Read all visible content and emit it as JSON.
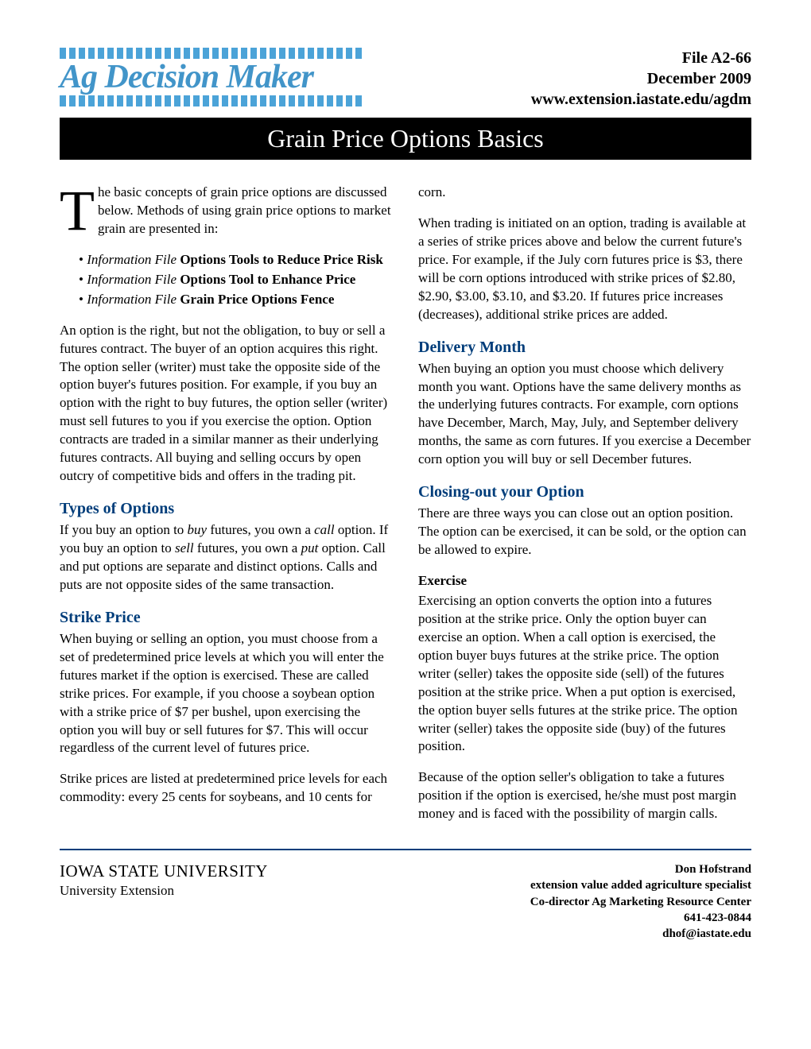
{
  "header": {
    "logo_text": "Ag Decision Maker",
    "file_id": "File  A2-66",
    "date": "December 2009",
    "url": "www.extension.iastate.edu/agdm"
  },
  "title": "Grain Price Options Basics",
  "intro": {
    "drop_cap": "T",
    "text": "he basic concepts of grain price options are discussed below. Methods of using grain price options to market grain are presented in:"
  },
  "info_files": {
    "prefix": "Information File",
    "items": [
      "Options Tools to Reduce Price Risk",
      "Options Tool to Enhance Price",
      "Grain Price Options Fence"
    ]
  },
  "para_option_def": "An option is the right, but not the obligation, to buy or sell a futures contract. The buyer of an option acquires this right. The option seller (writer) must take the opposite side of the option buyer's futures position. For example, if you buy an option with the right to buy futures, the option seller (writer) must sell futures to you if you exercise the option. Option contracts are traded in a similar manner as their underlying futures contracts. All buying and selling occurs by open outcry of competitive bids and offers in the trading pit.",
  "types_heading": "Types of Options",
  "types_para_parts": {
    "p1": "If you buy an option to ",
    "buy_i": "buy",
    "p2": " futures, you own a ",
    "call_i": "call",
    "p3": " option. If you buy an option to ",
    "sell_i": "sell",
    "p4": " futures, you own a ",
    "put_i": "put",
    "p5": " option. Call and put options are separate and distinct options. Calls and puts are not opposite sides of the same transaction."
  },
  "strike_heading": "Strike Price",
  "strike_para1": "When buying or selling an option, you must choose from a set of predetermined price levels at which you will enter the futures market if the option is exercised. These are called strike prices. For example, if you choose a soybean option with a strike price of $7 per bushel, upon exercising the option you will buy or sell futures for $7. This will occur regardless of the current level of futures price.",
  "strike_para2": "Strike prices are listed at predetermined price levels for each commodity: every 25 cents for soybeans, and 10 cents for corn.",
  "strike_para3": "When trading is initiated on an option, trading is available at a series of strike prices above and below the current future's price. For example, if the July corn futures price is $3, there will be corn options introduced with strike prices of $2.80, $2.90, $3.00, $3.10, and $3.20. If futures price increases (decreases), additional strike prices are added.",
  "delivery_heading": "Delivery Month",
  "delivery_para": "When buying an option you must choose which delivery month you want. Options have the same delivery months as the underlying futures contracts. For example, corn options have December, March, May, July, and September delivery months, the same as corn futures. If you exercise a December corn option you will buy or sell December futures.",
  "closing_heading": "Closing-out your Option",
  "closing_para": "There are three ways you can close out an option position. The option can be exercised, it can be sold, or the option can be allowed to expire.",
  "exercise_heading": "Exercise",
  "exercise_para1": "Exercising an option converts the option into a futures position at the strike price. Only the option buyer can exercise an option. When a call option is exercised, the option buyer buys futures at the strike price. The option writer (seller) takes the opposite side (sell) of the futures position at the strike price. When a put option is exercised, the option buyer sells futures at the strike price. The option writer (seller) takes the opposite side (buy) of the futures position.",
  "exercise_para2": "Because of the option seller's obligation to take a futures position if the option is exercised, he/she must post margin money and is faced with the possibility of margin calls.",
  "footer": {
    "university": "IOWA STATE UNIVERSITY",
    "extension": "University Extension",
    "author": "Don Hofstrand",
    "role": "extension value added agriculture specialist",
    "title2": "Co-director Ag Marketing Resource Center",
    "phone": "641-423-0844",
    "email": "dhof@iastate.edu"
  }
}
